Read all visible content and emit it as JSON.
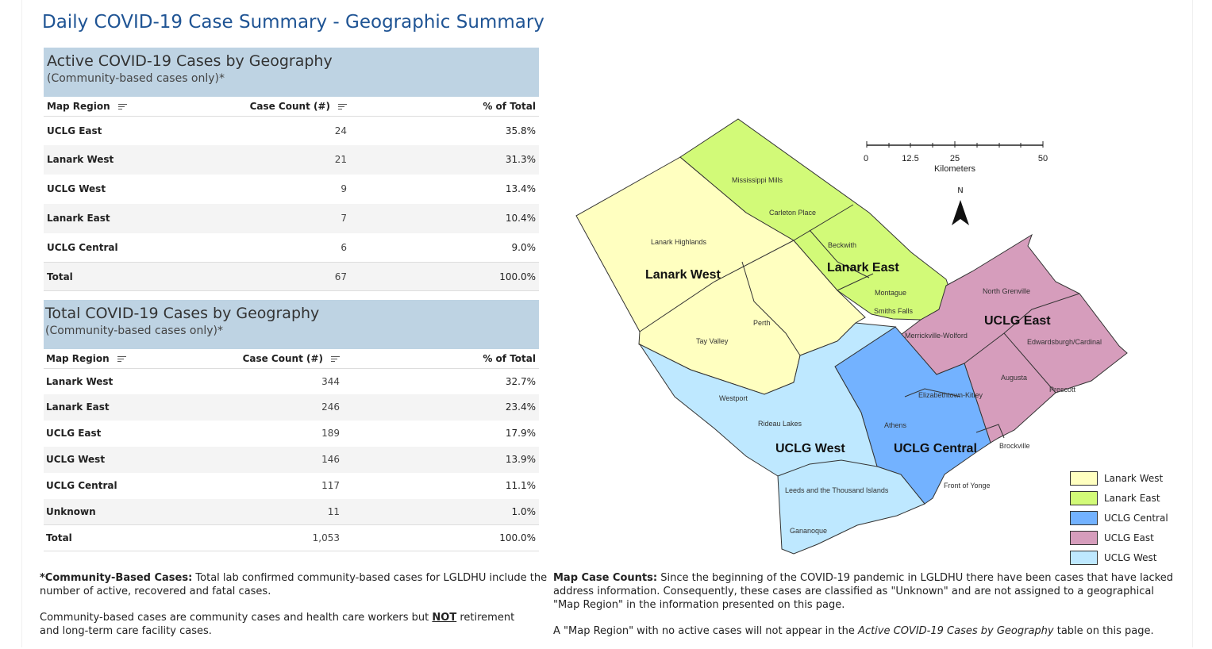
{
  "page_title": "Daily COVID-19 Case Summary - Geographic Summary",
  "active_table": {
    "title": "Active COVID-19 Cases by Geography",
    "subtitle": "(Community-based cases only)*",
    "columns": [
      "Map Region",
      "Case Count (#)",
      "% of Total"
    ],
    "rows": [
      {
        "region": "UCLG East",
        "count": "24",
        "pct": "35.8%"
      },
      {
        "region": "Lanark West",
        "count": "21",
        "pct": "31.3%"
      },
      {
        "region": "UCLG West",
        "count": "9",
        "pct": "13.4%"
      },
      {
        "region": "Lanark East",
        "count": "7",
        "pct": "10.4%"
      },
      {
        "region": "UCLG Central",
        "count": "6",
        "pct": "9.0%"
      }
    ],
    "total": {
      "region": "Total",
      "count": "67",
      "pct": "100.0%"
    }
  },
  "total_table": {
    "title": "Total COVID-19 Cases by Geography",
    "subtitle": "(Community-based cases only)*",
    "columns": [
      "Map Region",
      "Case Count (#)",
      "% of Total"
    ],
    "rows": [
      {
        "region": "Lanark West",
        "count": "344",
        "pct": "32.7%"
      },
      {
        "region": "Lanark East",
        "count": "246",
        "pct": "23.4%"
      },
      {
        "region": "UCLG East",
        "count": "189",
        "pct": "17.9%"
      },
      {
        "region": "UCLG West",
        "count": "146",
        "pct": "13.9%"
      },
      {
        "region": "UCLG Central",
        "count": "117",
        "pct": "11.1%"
      },
      {
        "region": "Unknown",
        "count": "11",
        "pct": "1.0%"
      }
    ],
    "total": {
      "region": "Total",
      "count": "1,053",
      "pct": "100.0%"
    }
  },
  "footnotes": {
    "community_label": "*Community-Based Cases:",
    "community_text": " Total lab confirmed community-based cases for LGLDHU include the number of active, recovered and fatal cases.",
    "community_def_a": "Community-based cases are community cases and health care workers but ",
    "community_def_not": "NOT",
    "community_def_b": " retirement and long-term care facility cases.",
    "map_label": "Map Case Counts:",
    "map_text": " Since the beginning of the COVID-19 pandemic in LGLDHU there have been cases that have lacked address information.  Consequently, these cases are classified as \"Unknown\" and are not assigned to a geographical \"Map Region\" in the information presented on this page.",
    "map_note_a": "A \"Map Region\" with no active cases will not appear in the ",
    "map_note_em": "Active COVID-19 Cases by Geography",
    "map_note_b": " table on this page."
  },
  "map": {
    "region_labels": {
      "lanark_west": "Lanark West",
      "lanark_east": "Lanark East",
      "uclg_east": "UCLG East",
      "uclg_west": "UCLG West",
      "uclg_central": "UCLG Central"
    },
    "places": {
      "mississippi_mills": "Mississippi Mills",
      "carleton_place": "Carleton Place",
      "beckwith": "Beckwith",
      "lanark_highlands": "Lanark Highlands",
      "montague": "Montague",
      "smiths_falls": "Smiths Falls",
      "perth": "Perth",
      "tay_valley": "Tay Valley",
      "north_grenville": "North Grenville",
      "merrickville_wolford": "Merrickville-Wolford",
      "edwardsburgh_cardinal": "Edwardsburgh/Cardinal",
      "augusta": "Augusta",
      "prescott": "Prescott",
      "elizabethtown_kitley": "Elizabethtown-Kitley",
      "westport": "Westport",
      "rideau_lakes": "Rideau Lakes",
      "athens": "Athens",
      "brockville": "Brockville",
      "front_of_yonge": "Front of Yonge",
      "leeds_thousand_islands": "Leeds and the Thousand Islands",
      "gananoque": "Gananoque"
    },
    "scale": {
      "ticks": [
        "0",
        "12.5",
        "25",
        "50"
      ],
      "unit": "Kilometers"
    },
    "north": "N",
    "legend": [
      {
        "label": "Lanark West",
        "color": "#ffffc0"
      },
      {
        "label": "Lanark East",
        "color": "#d2fa78"
      },
      {
        "label": "UCLG Central",
        "color": "#73b2ff"
      },
      {
        "label": "UCLG East",
        "color": "#d69dbc"
      },
      {
        "label": "UCLG West",
        "color": "#bee8ff"
      }
    ]
  }
}
